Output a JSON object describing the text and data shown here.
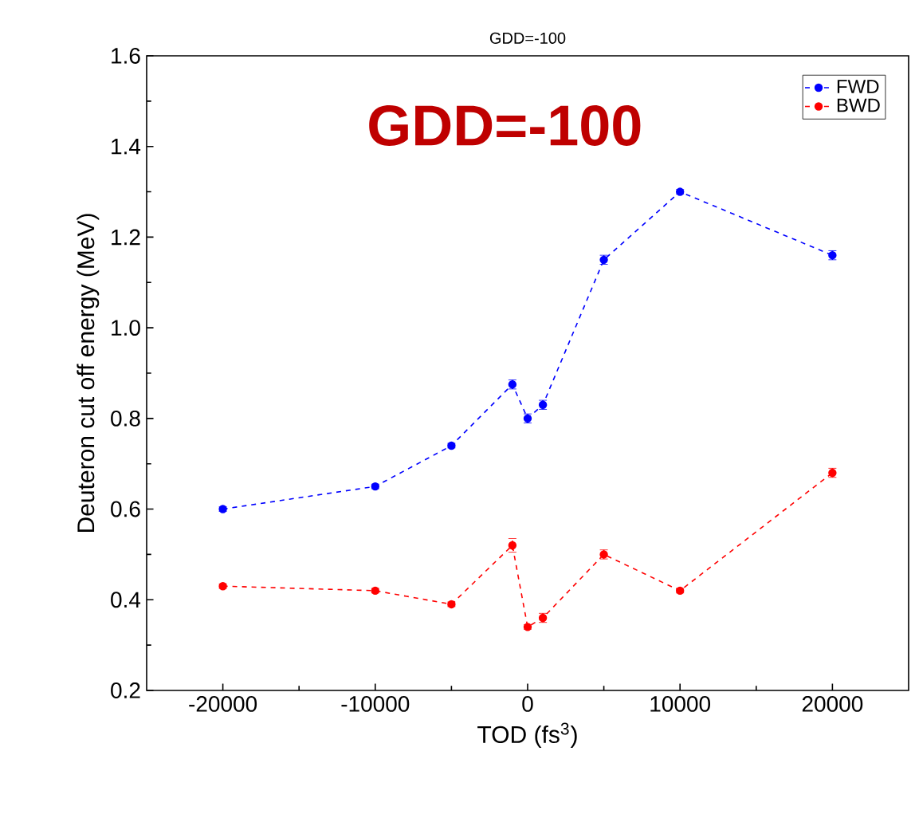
{
  "chart_data": {
    "type": "line",
    "title": "GDD=-100",
    "xlabel": "TOD (fs$^{3}$)",
    "ylabel": "Deuteron cut off energy (MeV)",
    "annotations": [
      "GDD=-100"
    ],
    "x": [
      -20000,
      -10000,
      -5000,
      -1000,
      0,
      1000,
      5000,
      10000,
      20000
    ],
    "series": [
      {
        "name": "FWD",
        "color": "#0000ff",
        "values": [
          0.6,
          0.65,
          0.74,
          0.875,
          0.8,
          0.83,
          1.15,
          1.3,
          1.16
        ],
        "errors": [
          0.005,
          0.005,
          0.005,
          0.01,
          0.01,
          0.01,
          0.01,
          0.005,
          0.01
        ]
      },
      {
        "name": "BWD",
        "color": "#ff0000",
        "values": [
          0.43,
          0.42,
          0.39,
          0.52,
          0.34,
          0.36,
          0.5,
          0.42,
          0.68
        ],
        "errors": [
          0.005,
          0.005,
          0.005,
          0.015,
          0.005,
          0.01,
          0.01,
          0.005,
          0.01
        ]
      }
    ],
    "xlim": [
      -25000,
      25000
    ],
    "ylim": [
      0.2,
      1.6
    ],
    "xticks": [
      -20000,
      -10000,
      0,
      10000,
      20000
    ],
    "yticks": [
      0.2,
      0.4,
      0.6,
      0.8,
      {
        "value": 1,
        "label": "1.0"
      },
      1.2,
      1.4,
      1.6
    ],
    "grid": false,
    "legend": "top right",
    "marker": "circle",
    "line_style": "dashed"
  }
}
